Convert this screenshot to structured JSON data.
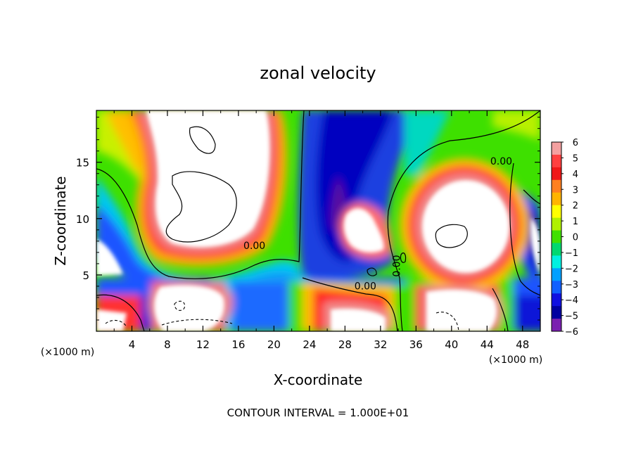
{
  "chart_data": {
    "type": "heatmap",
    "title": "zonal velocity",
    "xlabel": "X-coordinate",
    "ylabel": "Z-coordinate",
    "x_unit_left": "(×1000 m)",
    "x_unit_right": "(×1000 m)",
    "xlim": [
      0,
      50
    ],
    "ylim": [
      0,
      19.6
    ],
    "x_ticks": [
      4,
      8,
      12,
      16,
      20,
      24,
      28,
      32,
      36,
      40,
      44,
      48
    ],
    "y_ticks": [
      5,
      10,
      15
    ],
    "colorbar": {
      "min": -6,
      "max": 6,
      "tick_labels": [
        "6",
        "5",
        "4",
        "3",
        "2",
        "1",
        "0",
        "−1",
        "−2",
        "−3",
        "−4",
        "−5",
        "−6"
      ],
      "colors": [
        "#f4a0a0",
        "#ff4040",
        "#f01818",
        "#ff8020",
        "#ffb400",
        "#ffff00",
        "#b0f000",
        "#40e000",
        "#00d870",
        "#00f0e0",
        "#00a0ff",
        "#1060ff",
        "#1010e0",
        "#0000a0",
        "#7a20b0"
      ]
    },
    "contour_label_value": "0.00",
    "contour_labels": [
      {
        "text": "0.00",
        "x": 45.6,
        "y": 14.8
      },
      {
        "text": "0.00",
        "x": 17.8,
        "y": 7.3
      },
      {
        "text": "0.00",
        "x": 30.3,
        "y": 3.7
      },
      {
        "text": "0.00",
        "x": 34.2,
        "y": 5.8
      }
    ],
    "regions": [
      {
        "desc": "upper-left jet",
        "fill": "#ffffff"
      },
      {
        "desc": "right-center eddy",
        "fill": "#ffffff"
      },
      {
        "desc": "central descending band",
        "fill": "#1a40d8"
      }
    ],
    "footer": "CONTOUR INTERVAL = 1.000E+01"
  }
}
